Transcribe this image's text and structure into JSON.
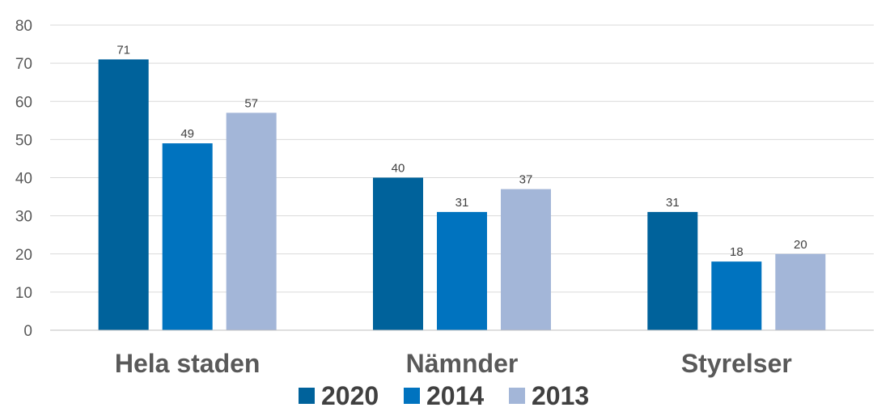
{
  "chart_data": {
    "type": "bar",
    "categories": [
      "Hela staden",
      "Nämnder",
      "Styrelser"
    ],
    "series": [
      {
        "name": "2020",
        "values": [
          71,
          40,
          31
        ],
        "color": "#00629b"
      },
      {
        "name": "2014",
        "values": [
          49,
          31,
          18
        ],
        "color": "#0073bf"
      },
      {
        "name": "2013",
        "values": [
          57,
          37,
          20
        ],
        "color": "#a3b6d8"
      }
    ],
    "ylim": [
      0,
      80
    ],
    "yticks": [
      "0",
      "10",
      "20",
      "30",
      "40",
      "50",
      "60",
      "70",
      "80"
    ],
    "grid": true,
    "legend_position": "bottom",
    "data_labels": true
  }
}
